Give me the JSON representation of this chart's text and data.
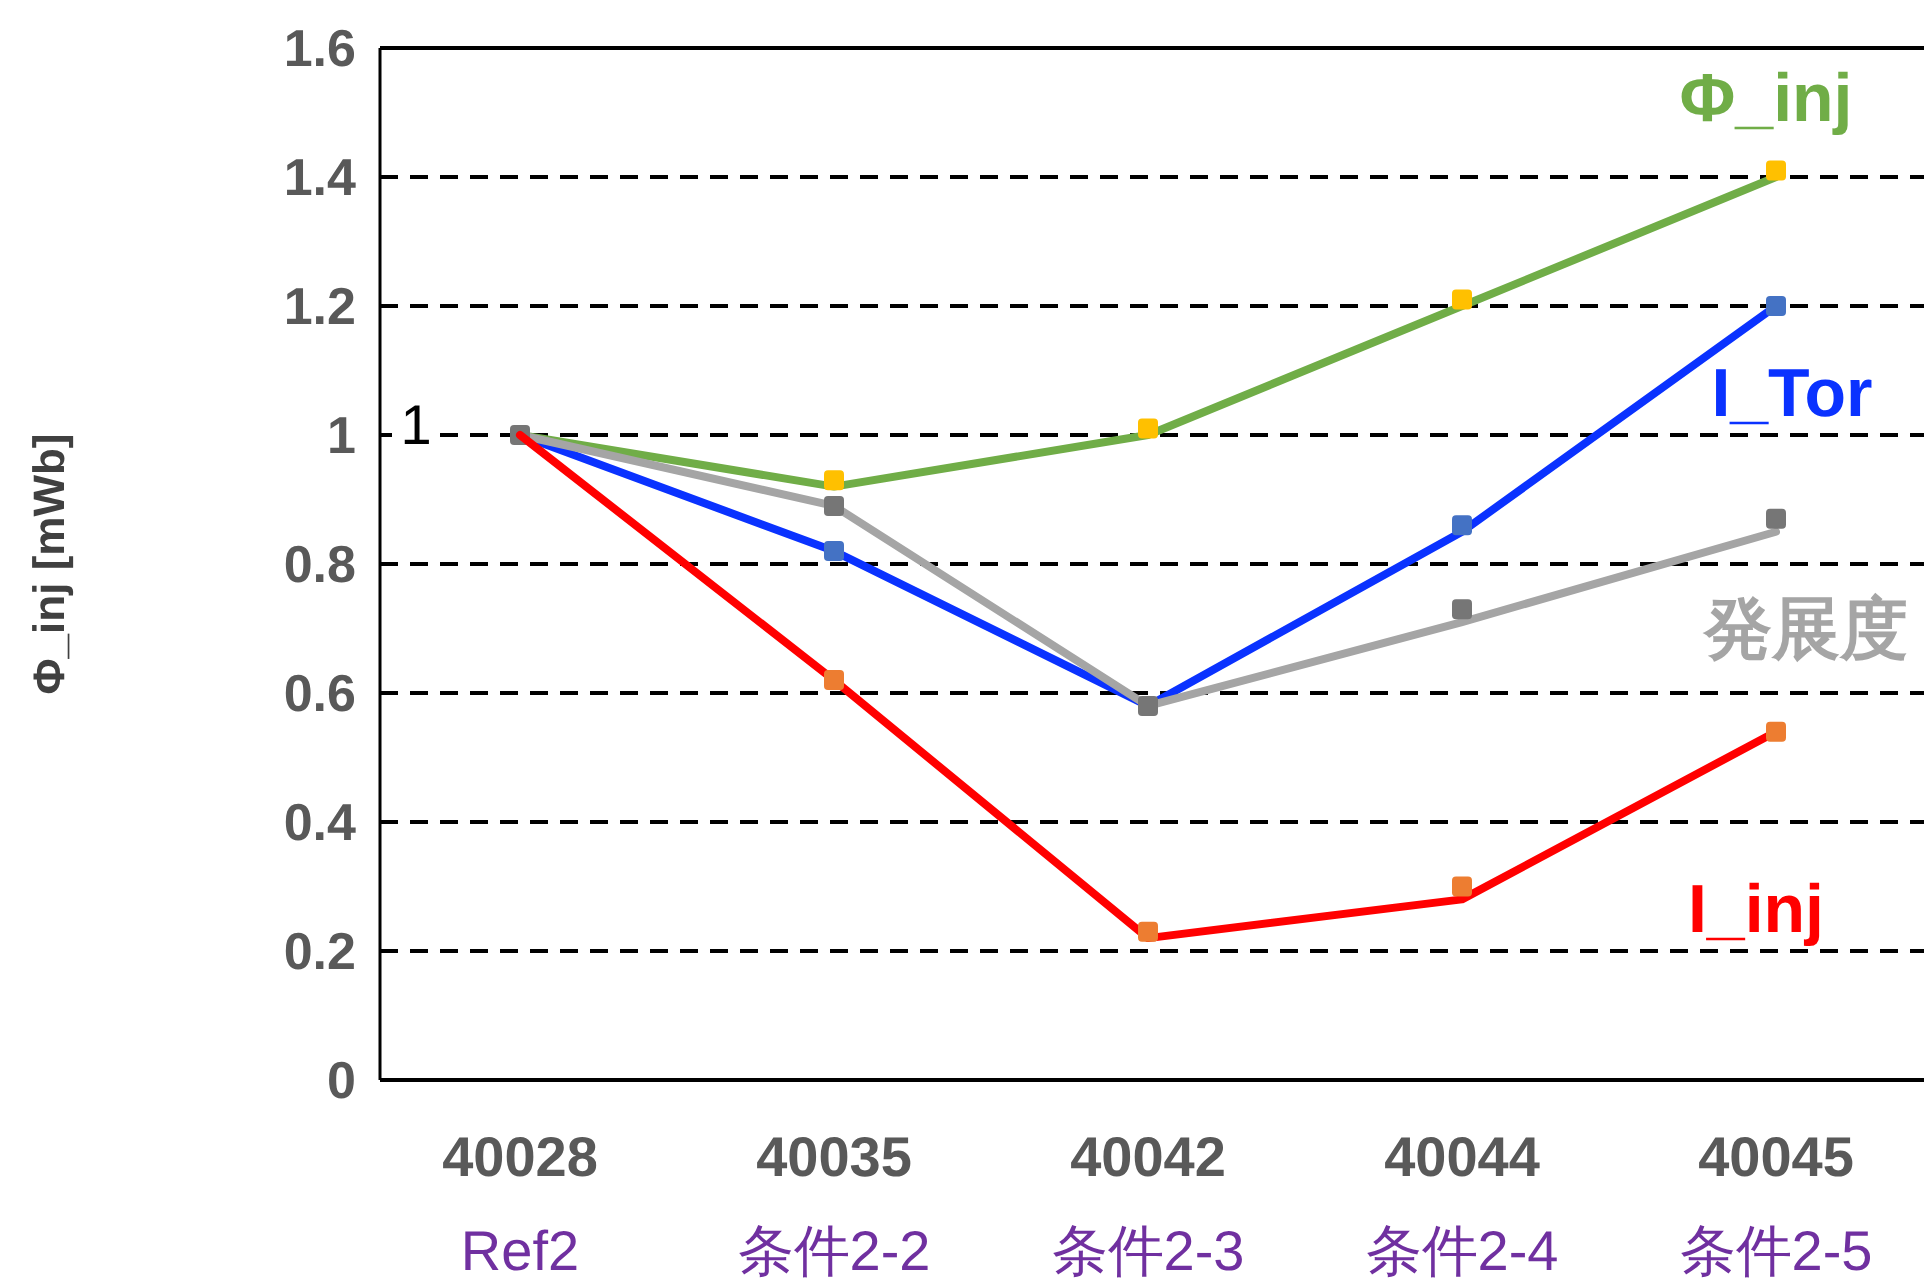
{
  "chart_data": {
    "type": "line",
    "ylabel": "Φ_inj [mWb]",
    "categories": [
      "40028\nRef2",
      "40035\n条件2-2",
      "40042\n条件2-3",
      "40044\n条件2-4",
      "40045\n条件2-5"
    ],
    "series": [
      {
        "name": "Φ_inj",
        "color": "#70ad47",
        "values": [
          1.0,
          0.92,
          1.0,
          1.2,
          1.4
        ]
      },
      {
        "type": "scatter",
        "marker": "square",
        "color": "#ffc000",
        "values": [
          null,
          0.93,
          1.01,
          1.21,
          1.41
        ]
      },
      {
        "name": "I_Tor",
        "color": "#0a32ff",
        "values": [
          1.0,
          0.82,
          0.58,
          0.85,
          1.2
        ]
      },
      {
        "type": "scatter",
        "marker": "square",
        "color": "#4472c4",
        "values": [
          null,
          0.82,
          null,
          0.86,
          1.2
        ]
      },
      {
        "name": "発展度",
        "color": "#a5a5a5",
        "values": [
          1.0,
          0.89,
          0.58,
          0.71,
          0.85
        ]
      },
      {
        "type": "scatter",
        "marker": "square",
        "color": "#767676",
        "values": [
          1.0,
          0.89,
          0.58,
          0.73,
          0.87
        ]
      },
      {
        "name": "I_inj",
        "color": "#ff0000",
        "values": [
          1.0,
          0.62,
          0.22,
          0.28,
          0.54
        ]
      },
      {
        "type": "scatter",
        "marker": "square",
        "color": "#ed7d31",
        "values": [
          null,
          0.62,
          0.23,
          0.3,
          0.54
        ]
      }
    ],
    "ylim": [
      0,
      1.6
    ],
    "yticks": [
      0,
      0.2,
      0.4,
      0.6,
      0.8,
      1,
      1.2,
      1.4,
      1.6
    ],
    "grid": "y",
    "line_style": "solid",
    "annotations": [
      "1"
    ]
  }
}
